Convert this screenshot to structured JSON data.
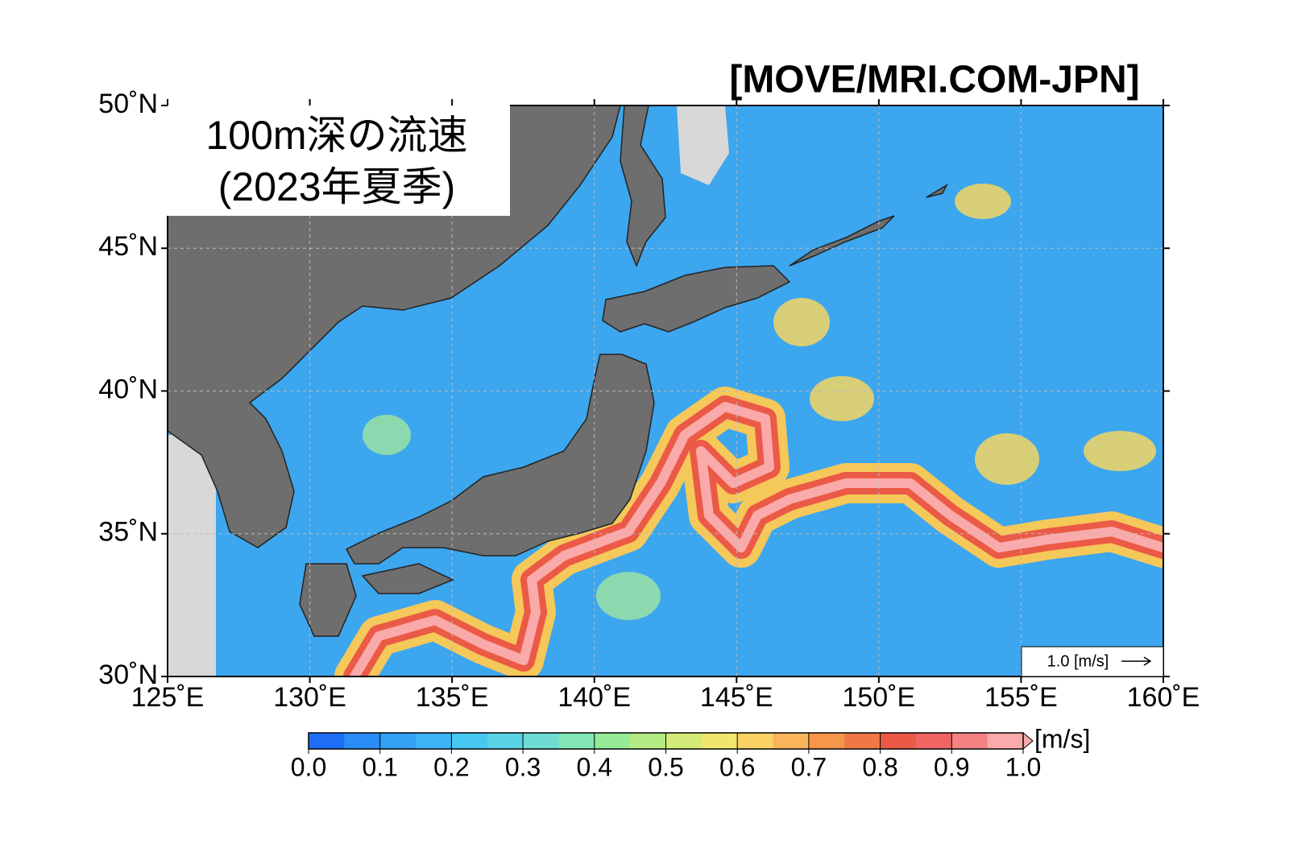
{
  "header": {
    "title": "100m深の流速",
    "subtitle": "(2023年夏季)",
    "source": "[MOVE/MRI.COM-JPN]"
  },
  "map": {
    "lonlim": [
      125,
      160
    ],
    "latlim": [
      30,
      50
    ],
    "lonticks": [
      {
        "value": 125,
        "label": "125˚E"
      },
      {
        "value": 130,
        "label": "130˚E"
      },
      {
        "value": 135,
        "label": "135˚E"
      },
      {
        "value": 140,
        "label": "140˚E"
      },
      {
        "value": 145,
        "label": "145˚E"
      },
      {
        "value": 150,
        "label": "150˚E"
      },
      {
        "value": 155,
        "label": "155˚E"
      },
      {
        "value": 160,
        "label": "160˚E"
      }
    ],
    "latticks": [
      {
        "value": 30,
        "label": "30˚N"
      },
      {
        "value": 35,
        "label": "35˚N"
      },
      {
        "value": 40,
        "label": "40˚N"
      },
      {
        "value": 45,
        "label": "45˚N"
      },
      {
        "value": 50,
        "label": "50˚N"
      }
    ],
    "grid": true,
    "reference_vector": {
      "label": "1.0 [m/s]"
    }
  },
  "colorbar": {
    "range": [
      0,
      1
    ],
    "unit": "[m/s]",
    "ticks": [
      {
        "value": 0,
        "label": "0.0"
      },
      {
        "value": 0.1,
        "label": "0.1"
      },
      {
        "value": 0.2,
        "label": "0.2"
      },
      {
        "value": 0.3,
        "label": "0.3"
      },
      {
        "value": 0.4,
        "label": "0.4"
      },
      {
        "value": 0.5,
        "label": "0.5"
      },
      {
        "value": 0.6,
        "label": "0.6"
      },
      {
        "value": 0.7,
        "label": "0.7"
      },
      {
        "value": 0.8,
        "label": "0.8"
      },
      {
        "value": 0.9,
        "label": "0.9"
      },
      {
        "value": 1,
        "label": "1.0"
      }
    ],
    "colors": [
      "#1e6ef5",
      "#2a8cf5",
      "#32a0f5",
      "#3cb4f5",
      "#46c8f0",
      "#5ad2e6",
      "#6edcd2",
      "#82e6b4",
      "#96eb96",
      "#b4eb82",
      "#d2eb78",
      "#f0e66e",
      "#fad264",
      "#fab45a",
      "#f5964b",
      "#f07846",
      "#eb5a46",
      "#f06464",
      "#f58282",
      "#faaaaa"
    ]
  }
}
